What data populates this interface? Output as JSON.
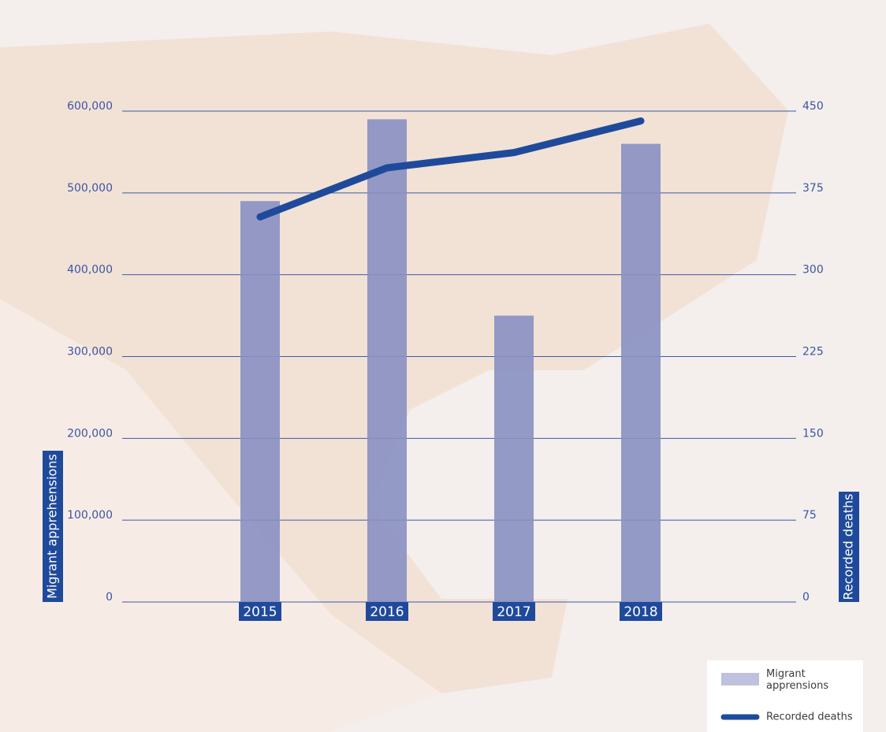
{
  "chart_data": {
    "type": "bar",
    "categories": [
      "2015",
      "2016",
      "2017",
      "2018"
    ],
    "series": [
      {
        "name": "Migrant apprensions",
        "color": "#8890c2",
        "values": [
          490000,
          590000,
          350000,
          560000
        ]
      },
      {
        "name": "Recorded deaths",
        "color": "#1f4a9c",
        "axis": "y2",
        "type": "line",
        "values": [
          353,
          398,
          412,
          441
        ]
      }
    ],
    "ylabel": "Migrant apprehensions",
    "y2label": "Recorded deaths",
    "ylim": [
      0,
      600000
    ],
    "yticks": [
      {
        "value": 0,
        "label": "0"
      },
      {
        "value": 100000,
        "label": "100,000"
      },
      {
        "value": 200000,
        "label": "200,000"
      },
      {
        "value": 300000,
        "label": "300,000"
      },
      {
        "value": 400000,
        "label": "400,000"
      },
      {
        "value": 500000,
        "label": "500,000"
      },
      {
        "value": 600000,
        "label": "600,000"
      }
    ],
    "y2lim": [
      0,
      450
    ],
    "y2ticks": [
      0,
      75,
      150,
      225,
      300,
      375,
      450
    ],
    "grid": true,
    "legend": "bottom-right"
  }
}
